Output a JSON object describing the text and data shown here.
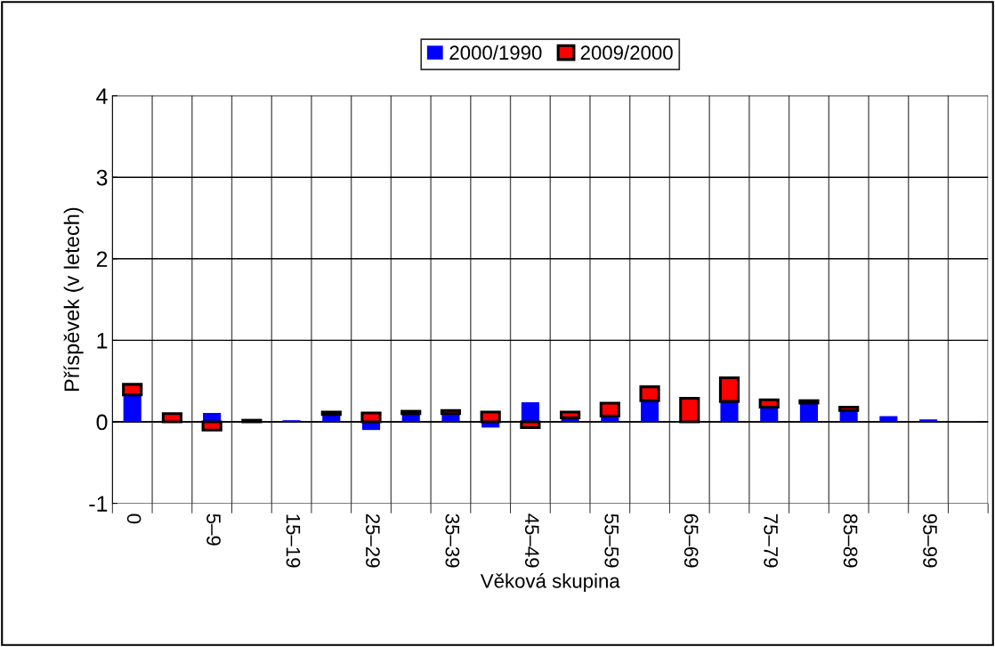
{
  "chart_data": {
    "type": "bar",
    "stacked": true,
    "xlabel": "Věková skupina",
    "ylabel": "Příspěvek (v letech)",
    "categories": [
      "0",
      null,
      "5–9",
      null,
      "15–19",
      null,
      "25–29",
      null,
      "35–39",
      null,
      "45–49",
      null,
      "55–59",
      null,
      "65–69",
      null,
      "75–79",
      null,
      "85–89",
      null,
      "95–99",
      null
    ],
    "series": [
      {
        "name": "2000/1990",
        "color": "#0000ff",
        "values": [
          0.33,
          null,
          0.11,
          0,
          0.02,
          0.09,
          -0.1,
          0.1,
          0.1,
          -0.07,
          0.24,
          0.05,
          0.07,
          0.26,
          null,
          0.25,
          0.18,
          0.23,
          0.14,
          0.07,
          0.03,
          0.01
        ]
      },
      {
        "name": "2009/2000",
        "color": "#ff0000",
        "values": [
          0.13,
          0.1,
          -0.1,
          0.02,
          0,
          0.03,
          0.11,
          0.03,
          0.04,
          0.12,
          -0.07,
          0.07,
          0.16,
          0.17,
          0.29,
          0.29,
          0.09,
          0.03,
          0.04,
          0,
          0,
          0
        ]
      }
    ],
    "ylim": [
      -1,
      4
    ],
    "yticks": [
      -1,
      0,
      1,
      2,
      3,
      4
    ],
    "grid": true,
    "legend": "top"
  }
}
